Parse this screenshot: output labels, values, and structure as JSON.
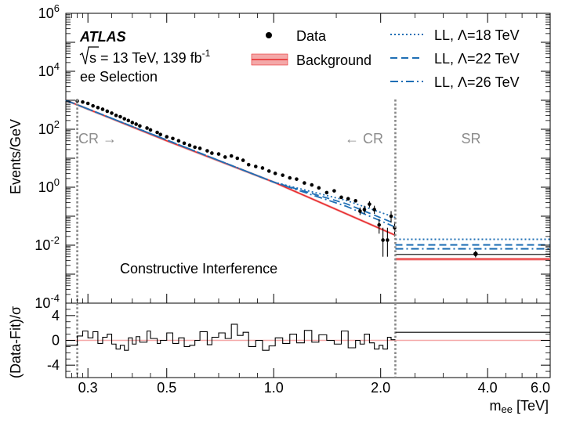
{
  "chart_data": {
    "type": "scatter",
    "experiment": "ATLAS",
    "energy_prefix": "s",
    "energy_text": " = 13 TeV, 139 fb",
    "lumi_exp": "-1",
    "selection": "ee Selection",
    "annotation": "Constructive Interference",
    "region_labels": {
      "cr_left": "CR →",
      "cr_right": "← CR",
      "sr": "SR"
    },
    "ylabel": "Events/GeV",
    "ratio_ylabel": "(Data-Fit)/σ",
    "xlabel_main": "m",
    "xlabel_sub": "ee",
    "xlabel_unit": " [TeV]",
    "xscale": "log",
    "xlim": [
      0.26,
      6.0
    ],
    "ylim": [
      0.0001,
      1000000
    ],
    "ratio_ylim": [
      -6,
      6
    ],
    "x_ticks": [
      {
        "v": 0.3,
        "label": "0.3"
      },
      {
        "v": 0.5,
        "label": "0.5"
      },
      {
        "v": 1.0,
        "label": "1.0"
      },
      {
        "v": 2.0,
        "label": "2.0"
      },
      {
        "v": 4.0,
        "label": "4.0"
      },
      {
        "v": 6.0,
        "label": "6.0"
      }
    ],
    "y_ticks": [
      {
        "exp": -4,
        "base": "10",
        "sup": "-4"
      },
      {
        "exp": -2,
        "base": "10",
        "sup": "-2"
      },
      {
        "exp": 0,
        "base": "10",
        "sup": "0"
      },
      {
        "exp": 2,
        "base": "10",
        "sup": "2"
      },
      {
        "exp": 4,
        "base": "10",
        "sup": "4"
      },
      {
        "exp": 6,
        "base": "10",
        "sup": "6"
      }
    ],
    "ratio_ticks": [
      {
        "v": 4,
        "label": "4"
      },
      {
        "v": 0,
        "label": "0"
      },
      {
        "v": -4,
        "label": "-4"
      }
    ],
    "cr_lines_x": [
      0.28,
      2.2
    ],
    "legend": {
      "data": "Data",
      "background": "Background",
      "ll18": "LL, Λ=18 TeV",
      "ll22": "LL, Λ=22 TeV",
      "ll26": "LL, Λ=26 TeV"
    },
    "colors": {
      "background": "#e8282a",
      "band": "#f4a8a8",
      "signal": "#1f6fb5",
      "data": "#000000",
      "cr_line": "#888888"
    },
    "background_cr": {
      "x": [
        0.26,
        0.5,
        1.0,
        2.2
      ],
      "y": [
        1000,
        40,
        1.5,
        0.022
      ]
    },
    "signals_cr": [
      {
        "name": "LL, Λ=18 TeV",
        "style": "dotted",
        "x": [
          0.26,
          1.0,
          1.6,
          2.2
        ],
        "y": [
          1000,
          1.5,
          0.35,
          0.09
        ]
      },
      {
        "name": "LL, Λ=22 TeV",
        "style": "dashed",
        "x": [
          0.26,
          1.0,
          1.6,
          2.2
        ],
        "y": [
          1000,
          1.5,
          0.27,
          0.055
        ]
      },
      {
        "name": "LL, Λ=26 TeV",
        "style": "dashdot",
        "x": [
          0.26,
          1.0,
          1.6,
          2.2
        ],
        "y": [
          1000,
          1.5,
          0.22,
          0.042
        ]
      }
    ],
    "sr": {
      "x_range": [
        2.2,
        6.0
      ],
      "background": 0.0033,
      "data_line": 0.0048,
      "ll18": 0.016,
      "ll22": 0.0102,
      "ll26": 0.0075,
      "data_point_x": 3.7,
      "data_point_y": 0.005,
      "data_point_err": [
        0.0038,
        0.0064
      ],
      "ratio": 1.3
    },
    "data": [
      {
        "x": 0.28,
        "y": 950
      },
      {
        "x": 0.29,
        "y": 870
      },
      {
        "x": 0.3,
        "y": 780
      },
      {
        "x": 0.31,
        "y": 640
      },
      {
        "x": 0.32,
        "y": 560
      },
      {
        "x": 0.33,
        "y": 490
      },
      {
        "x": 0.34,
        "y": 420
      },
      {
        "x": 0.35,
        "y": 360
      },
      {
        "x": 0.36,
        "y": 300
      },
      {
        "x": 0.37,
        "y": 270
      },
      {
        "x": 0.38,
        "y": 230
      },
      {
        "x": 0.39,
        "y": 200
      },
      {
        "x": 0.4,
        "y": 170
      },
      {
        "x": 0.41,
        "y": 150
      },
      {
        "x": 0.42,
        "y": 130
      },
      {
        "x": 0.44,
        "y": 110
      },
      {
        "x": 0.45,
        "y": 95
      },
      {
        "x": 0.47,
        "y": 78
      },
      {
        "x": 0.48,
        "y": 66
      },
      {
        "x": 0.5,
        "y": 55
      },
      {
        "x": 0.52,
        "y": 48
      },
      {
        "x": 0.54,
        "y": 40
      },
      {
        "x": 0.56,
        "y": 33
      },
      {
        "x": 0.58,
        "y": 28
      },
      {
        "x": 0.6,
        "y": 24
      },
      {
        "x": 0.62,
        "y": 22
      },
      {
        "x": 0.65,
        "y": 18
      },
      {
        "x": 0.67,
        "y": 15
      },
      {
        "x": 0.7,
        "y": 14
      },
      {
        "x": 0.73,
        "y": 11
      },
      {
        "x": 0.76,
        "y": 12
      },
      {
        "x": 0.79,
        "y": 10
      },
      {
        "x": 0.82,
        "y": 8.5
      },
      {
        "x": 0.85,
        "y": 6
      },
      {
        "x": 0.89,
        "y": 5.2
      },
      {
        "x": 0.93,
        "y": 4.6
      },
      {
        "x": 0.97,
        "y": 3.6
      },
      {
        "x": 1.01,
        "y": 3.0
      },
      {
        "x": 1.06,
        "y": 2.6
      },
      {
        "x": 1.11,
        "y": 2.1
      },
      {
        "x": 1.16,
        "y": 1.9
      },
      {
        "x": 1.22,
        "y": 1.4
      },
      {
        "x": 1.28,
        "y": 1.2
      },
      {
        "x": 1.34,
        "y": 0.95
      },
      {
        "x": 1.41,
        "y": 0.65
      },
      {
        "x": 1.48,
        "y": 0.75
      },
      {
        "x": 1.55,
        "y": 0.45
      },
      {
        "x": 1.62,
        "y": 0.4
      },
      {
        "x": 1.7,
        "y": 0.34
      },
      {
        "x": 1.75,
        "y": 0.15,
        "err": [
          0.11,
          0.2
        ]
      },
      {
        "x": 1.8,
        "y": 0.17,
        "err": [
          0.12,
          0.23
        ]
      },
      {
        "x": 1.86,
        "y": 0.26,
        "err": [
          0.2,
          0.33
        ]
      },
      {
        "x": 1.92,
        "y": 0.17,
        "err": [
          0.12,
          0.23
        ]
      },
      {
        "x": 1.98,
        "y": 0.05,
        "err": [
          0.025,
          0.08
        ]
      },
      {
        "x": 2.03,
        "y": 0.015,
        "err": [
          0.004,
          0.04
        ]
      },
      {
        "x": 2.09,
        "y": 0.015,
        "err": [
          0.004,
          0.04
        ]
      },
      {
        "x": 2.14,
        "y": 0.1,
        "err": [
          0.06,
          0.15
        ]
      },
      {
        "x": 2.19,
        "y": 0.04,
        "err": [
          0.02,
          0.065
        ]
      }
    ],
    "ratio_edges": [
      0.26,
      0.28,
      0.29,
      0.3,
      0.31,
      0.32,
      0.33,
      0.34,
      0.35,
      0.36,
      0.37,
      0.38,
      0.39,
      0.4,
      0.41,
      0.42,
      0.44,
      0.45,
      0.47,
      0.48,
      0.5,
      0.52,
      0.54,
      0.56,
      0.58,
      0.6,
      0.62,
      0.65,
      0.67,
      0.7,
      0.73,
      0.76,
      0.79,
      0.82,
      0.85,
      0.89,
      0.93,
      0.97,
      1.01,
      1.06,
      1.11,
      1.16,
      1.22,
      1.28,
      1.34,
      1.41,
      1.48,
      1.55,
      1.62,
      1.7,
      1.75,
      1.8,
      1.86,
      1.92,
      1.98,
      2.03,
      2.09,
      2.14,
      2.2
    ],
    "ratio_values": [
      -0.8,
      0.7,
      1.5,
      0.4,
      1.4,
      -0.5,
      0.5,
      1.0,
      -0.6,
      -1.4,
      -0.8,
      -1.6,
      0.4,
      -0.6,
      0.6,
      -0.3,
      1.5,
      0.3,
      -0.5,
      0.0,
      1.2,
      -0.5,
      0.4,
      -1.0,
      -0.8,
      0.0,
      1.4,
      -0.7,
      0.5,
      1.2,
      0.3,
      2.6,
      0.8,
      1.3,
      -1.0,
      0.0,
      -1.6,
      -0.9,
      0.4,
      -0.5,
      1.0,
      -0.4,
      1.6,
      -0.3,
      0.9,
      0.0,
      -0.6,
      1.5,
      -1.2,
      0.0,
      -0.6,
      1.0,
      -0.4,
      -1.4,
      -0.8,
      -1.4,
      0.5,
      0.1
    ]
  }
}
